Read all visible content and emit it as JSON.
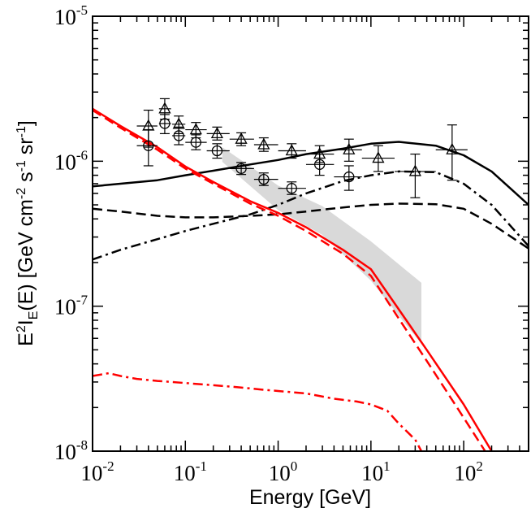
{
  "chart_data": {
    "type": "line",
    "xlabel": "Energy [GeV]",
    "ylabel": "E2IE(E) [GeV cm-2 s-1 sr-1]",
    "xscale": "log",
    "yscale": "log",
    "xlim": [
      0.01,
      500
    ],
    "ylim": [
      1e-08,
      1e-05
    ],
    "x_ticks": [
      {
        "value": 0.01,
        "base": "10",
        "exp": "-2"
      },
      {
        "value": 0.1,
        "base": "10",
        "exp": "-1"
      },
      {
        "value": 1,
        "base": "10",
        "exp": "0"
      },
      {
        "value": 10,
        "base": "10",
        "exp": "1"
      },
      {
        "value": 100,
        "base": "10",
        "exp": "2"
      }
    ],
    "y_ticks": [
      {
        "value": 1e-08,
        "base": "10",
        "exp": "-8"
      },
      {
        "value": 1e-07,
        "base": "10",
        "exp": "-7"
      },
      {
        "value": 1e-06,
        "base": "10",
        "exp": "-6"
      },
      {
        "value": 1e-05,
        "base": "10",
        "exp": "-5"
      }
    ],
    "grid": false,
    "legend": "none",
    "band": {
      "color": "#d9d9d9",
      "upper": [
        [
          0.25,
          1.25e-06
        ],
        [
          1.0,
          6.8e-07
        ],
        [
          3.0,
          4.9e-07
        ],
        [
          10.0,
          2.8e-07
        ],
        [
          35.0,
          1.45e-07
        ]
      ],
      "lower": [
        [
          0.25,
          9.9e-07
        ],
        [
          1.0,
          4.6e-07
        ],
        [
          3.0,
          3.1e-07
        ],
        [
          10.0,
          1.5e-07
        ],
        [
          35.0,
          5.5e-08
        ]
      ]
    },
    "series": [
      {
        "style": "solid",
        "color": "#000000",
        "points": [
          [
            0.01,
            6.7e-07
          ],
          [
            0.02,
            7e-07
          ],
          [
            0.05,
            7.4e-07
          ],
          [
            0.1,
            8e-07
          ],
          [
            0.2,
            8.6e-07
          ],
          [
            0.5,
            9.5e-07
          ],
          [
            1.0,
            1.02e-06
          ],
          [
            2.0,
            1.12e-06
          ],
          [
            5.0,
            1.22e-06
          ],
          [
            10.0,
            1.32e-06
          ],
          [
            20.0,
            1.36e-06
          ],
          [
            50.0,
            1.28e-06
          ],
          [
            100.0,
            1.1e-06
          ],
          [
            200.0,
            8.5e-07
          ],
          [
            500.0,
            5e-07
          ]
        ]
      },
      {
        "style": "dash",
        "color": "#000000",
        "points": [
          [
            0.01,
            4.7e-07
          ],
          [
            0.02,
            4.5e-07
          ],
          [
            0.05,
            4.2e-07
          ],
          [
            0.1,
            4.1e-07
          ],
          [
            0.2,
            4.1e-07
          ],
          [
            0.5,
            4.2e-07
          ],
          [
            1.0,
            4.3e-07
          ],
          [
            2.0,
            4.5e-07
          ],
          [
            5.0,
            4.8e-07
          ],
          [
            10.0,
            5e-07
          ],
          [
            20.0,
            5.1e-07
          ],
          [
            50.0,
            5.05e-07
          ],
          [
            100.0,
            4.7e-07
          ],
          [
            200.0,
            3.7e-07
          ],
          [
            500.0,
            2.5e-07
          ]
        ]
      },
      {
        "style": "dashdot",
        "color": "#000000",
        "points": [
          [
            0.01,
            2.1e-07
          ],
          [
            0.02,
            2.45e-07
          ],
          [
            0.05,
            2.9e-07
          ],
          [
            0.1,
            3.3e-07
          ],
          [
            0.2,
            3.7e-07
          ],
          [
            0.5,
            4.3e-07
          ],
          [
            1.0,
            5e-07
          ],
          [
            2.0,
            6e-07
          ],
          [
            5.0,
            7.3e-07
          ],
          [
            10.0,
            8e-07
          ],
          [
            20.0,
            8.5e-07
          ],
          [
            50.0,
            8.4e-07
          ],
          [
            100.0,
            7e-07
          ],
          [
            200.0,
            5e-07
          ],
          [
            500.0,
            2.6e-07
          ]
        ]
      },
      {
        "style": "solid",
        "color": "#ff0000",
        "points": [
          [
            0.01,
            2.3e-06
          ],
          [
            0.02,
            1.75e-06
          ],
          [
            0.05,
            1.25e-06
          ],
          [
            0.1,
            9.2e-07
          ],
          [
            0.2,
            7.2e-07
          ],
          [
            0.5,
            5.3e-07
          ],
          [
            1.0,
            4.4e-07
          ],
          [
            2.0,
            3.5e-07
          ],
          [
            5.0,
            2.45e-07
          ],
          [
            10.0,
            1.8e-07
          ],
          [
            20.0,
            9.5e-08
          ],
          [
            40.0,
            5e-08
          ],
          [
            100.0,
            2.1e-08
          ],
          [
            200.0,
            1e-08
          ]
        ]
      },
      {
        "style": "dash",
        "color": "#ff0000",
        "points": [
          [
            0.01,
            2.25e-06
          ],
          [
            0.02,
            1.7e-06
          ],
          [
            0.05,
            1.2e-06
          ],
          [
            0.1,
            8.9e-07
          ],
          [
            0.2,
            7e-07
          ],
          [
            0.5,
            5.1e-07
          ],
          [
            1.0,
            4.2e-07
          ],
          [
            2.0,
            3.3e-07
          ],
          [
            5.0,
            2.3e-07
          ],
          [
            10.0,
            1.62e-07
          ],
          [
            20.0,
            8.2e-08
          ],
          [
            40.0,
            4.2e-08
          ],
          [
            100.0,
            1.7e-08
          ],
          [
            170.0,
            1e-08
          ]
        ]
      },
      {
        "style": "dashdot",
        "color": "#ff0000",
        "points": [
          [
            0.01,
            3.3e-08
          ],
          [
            0.015,
            3.45e-08
          ],
          [
            0.02,
            3.3e-08
          ],
          [
            0.03,
            3.15e-08
          ],
          [
            0.05,
            3.05e-08
          ],
          [
            0.1,
            2.95e-08
          ],
          [
            0.2,
            2.85e-08
          ],
          [
            0.4,
            2.75e-08
          ],
          [
            0.7,
            2.65e-08
          ],
          [
            1.0,
            2.6e-08
          ],
          [
            2.0,
            2.5e-08
          ],
          [
            4.0,
            2.3e-08
          ],
          [
            7.0,
            2.2e-08
          ],
          [
            10.0,
            2.1e-08
          ],
          [
            15.0,
            1.9e-08
          ],
          [
            20.0,
            1.55e-08
          ],
          [
            30.0,
            1.2e-08
          ],
          [
            35.0,
            1e-08
          ]
        ]
      }
    ],
    "markers": [
      {
        "shape": "triangle",
        "points": [
          {
            "x": 0.04,
            "y": 1.75e-06,
            "xlo": 0.03,
            "xhi": 0.05,
            "ylo": 1.25e-06,
            "yhi": 2.25e-06
          },
          {
            "x": 0.06,
            "y": 2.3e-06,
            "xlo": 0.052,
            "xhi": 0.07,
            "ylo": 1.95e-06,
            "yhi": 2.7e-06
          },
          {
            "x": 0.085,
            "y": 1.8e-06,
            "xlo": 0.072,
            "xhi": 0.1,
            "ylo": 1.55e-06,
            "yhi": 2.05e-06
          },
          {
            "x": 0.13,
            "y": 1.65e-06,
            "xlo": 0.1,
            "xhi": 0.17,
            "ylo": 1.45e-06,
            "yhi": 1.85e-06
          },
          {
            "x": 0.22,
            "y": 1.55e-06,
            "xlo": 0.17,
            "xhi": 0.3,
            "ylo": 1.4e-06,
            "yhi": 1.72e-06
          },
          {
            "x": 0.4,
            "y": 1.42e-06,
            "xlo": 0.3,
            "xhi": 0.55,
            "ylo": 1.28e-06,
            "yhi": 1.57e-06
          },
          {
            "x": 0.7,
            "y": 1.3e-06,
            "xlo": 0.55,
            "xhi": 1.0,
            "ylo": 1.17e-06,
            "yhi": 1.45e-06
          },
          {
            "x": 1.4,
            "y": 1.18e-06,
            "xlo": 1.0,
            "xhi": 2.0,
            "ylo": 1.05e-06,
            "yhi": 1.32e-06
          },
          {
            "x": 2.8,
            "y": 1.12e-06,
            "xlo": 2.0,
            "xhi": 4.0,
            "ylo": 9.8e-07,
            "yhi": 1.28e-06
          },
          {
            "x": 5.8,
            "y": 1.2e-06,
            "xlo": 4.0,
            "xhi": 8.0,
            "ylo": 1e-06,
            "yhi": 1.42e-06
          },
          {
            "x": 12.0,
            "y": 1.05e-06,
            "xlo": 8.0,
            "xhi": 18.0,
            "ylo": 8.5e-07,
            "yhi": 1.28e-06
          },
          {
            "x": 30.0,
            "y": 8.5e-07,
            "xlo": 18.0,
            "xhi": 50.0,
            "ylo": 5.6e-07,
            "yhi": 1.12e-06
          },
          {
            "x": 75.0,
            "y": 1.2e-06,
            "xlo": 50.0,
            "xhi": 110.0,
            "ylo": 7.4e-07,
            "yhi": 1.78e-06
          }
        ]
      },
      {
        "shape": "circle",
        "points": [
          {
            "x": 0.04,
            "y": 1.28e-06,
            "xlo": 0.03,
            "xhi": 0.05,
            "ylo": 9.3e-07,
            "yhi": 1.65e-06
          },
          {
            "x": 0.06,
            "y": 1.82e-06,
            "xlo": 0.052,
            "xhi": 0.07,
            "ylo": 1.55e-06,
            "yhi": 2.1e-06
          },
          {
            "x": 0.085,
            "y": 1.5e-06,
            "xlo": 0.072,
            "xhi": 0.1,
            "ylo": 1.3e-06,
            "yhi": 1.72e-06
          },
          {
            "x": 0.13,
            "y": 1.35e-06,
            "xlo": 0.1,
            "xhi": 0.17,
            "ylo": 1.2e-06,
            "yhi": 1.52e-06
          },
          {
            "x": 0.22,
            "y": 1.18e-06,
            "xlo": 0.17,
            "xhi": 0.3,
            "ylo": 1.05e-06,
            "yhi": 1.32e-06
          },
          {
            "x": 0.4,
            "y": 8.9e-07,
            "xlo": 0.3,
            "xhi": 0.55,
            "ylo": 8.1e-07,
            "yhi": 9.8e-07
          },
          {
            "x": 0.7,
            "y": 7.5e-07,
            "xlo": 0.55,
            "xhi": 1.0,
            "ylo": 6.8e-07,
            "yhi": 8.3e-07
          },
          {
            "x": 1.4,
            "y": 6.5e-07,
            "xlo": 1.0,
            "xhi": 2.0,
            "ylo": 5.9e-07,
            "yhi": 7.2e-07
          },
          {
            "x": 2.8,
            "y": 9.5e-07,
            "xlo": 2.0,
            "xhi": 4.0,
            "ylo": 8e-07,
            "yhi": 1.12e-06
          },
          {
            "x": 5.8,
            "y": 7.8e-07,
            "xlo": 4.0,
            "xhi": 8.0,
            "ylo": 6.3e-07,
            "yhi": 9.3e-07
          }
        ]
      }
    ]
  }
}
